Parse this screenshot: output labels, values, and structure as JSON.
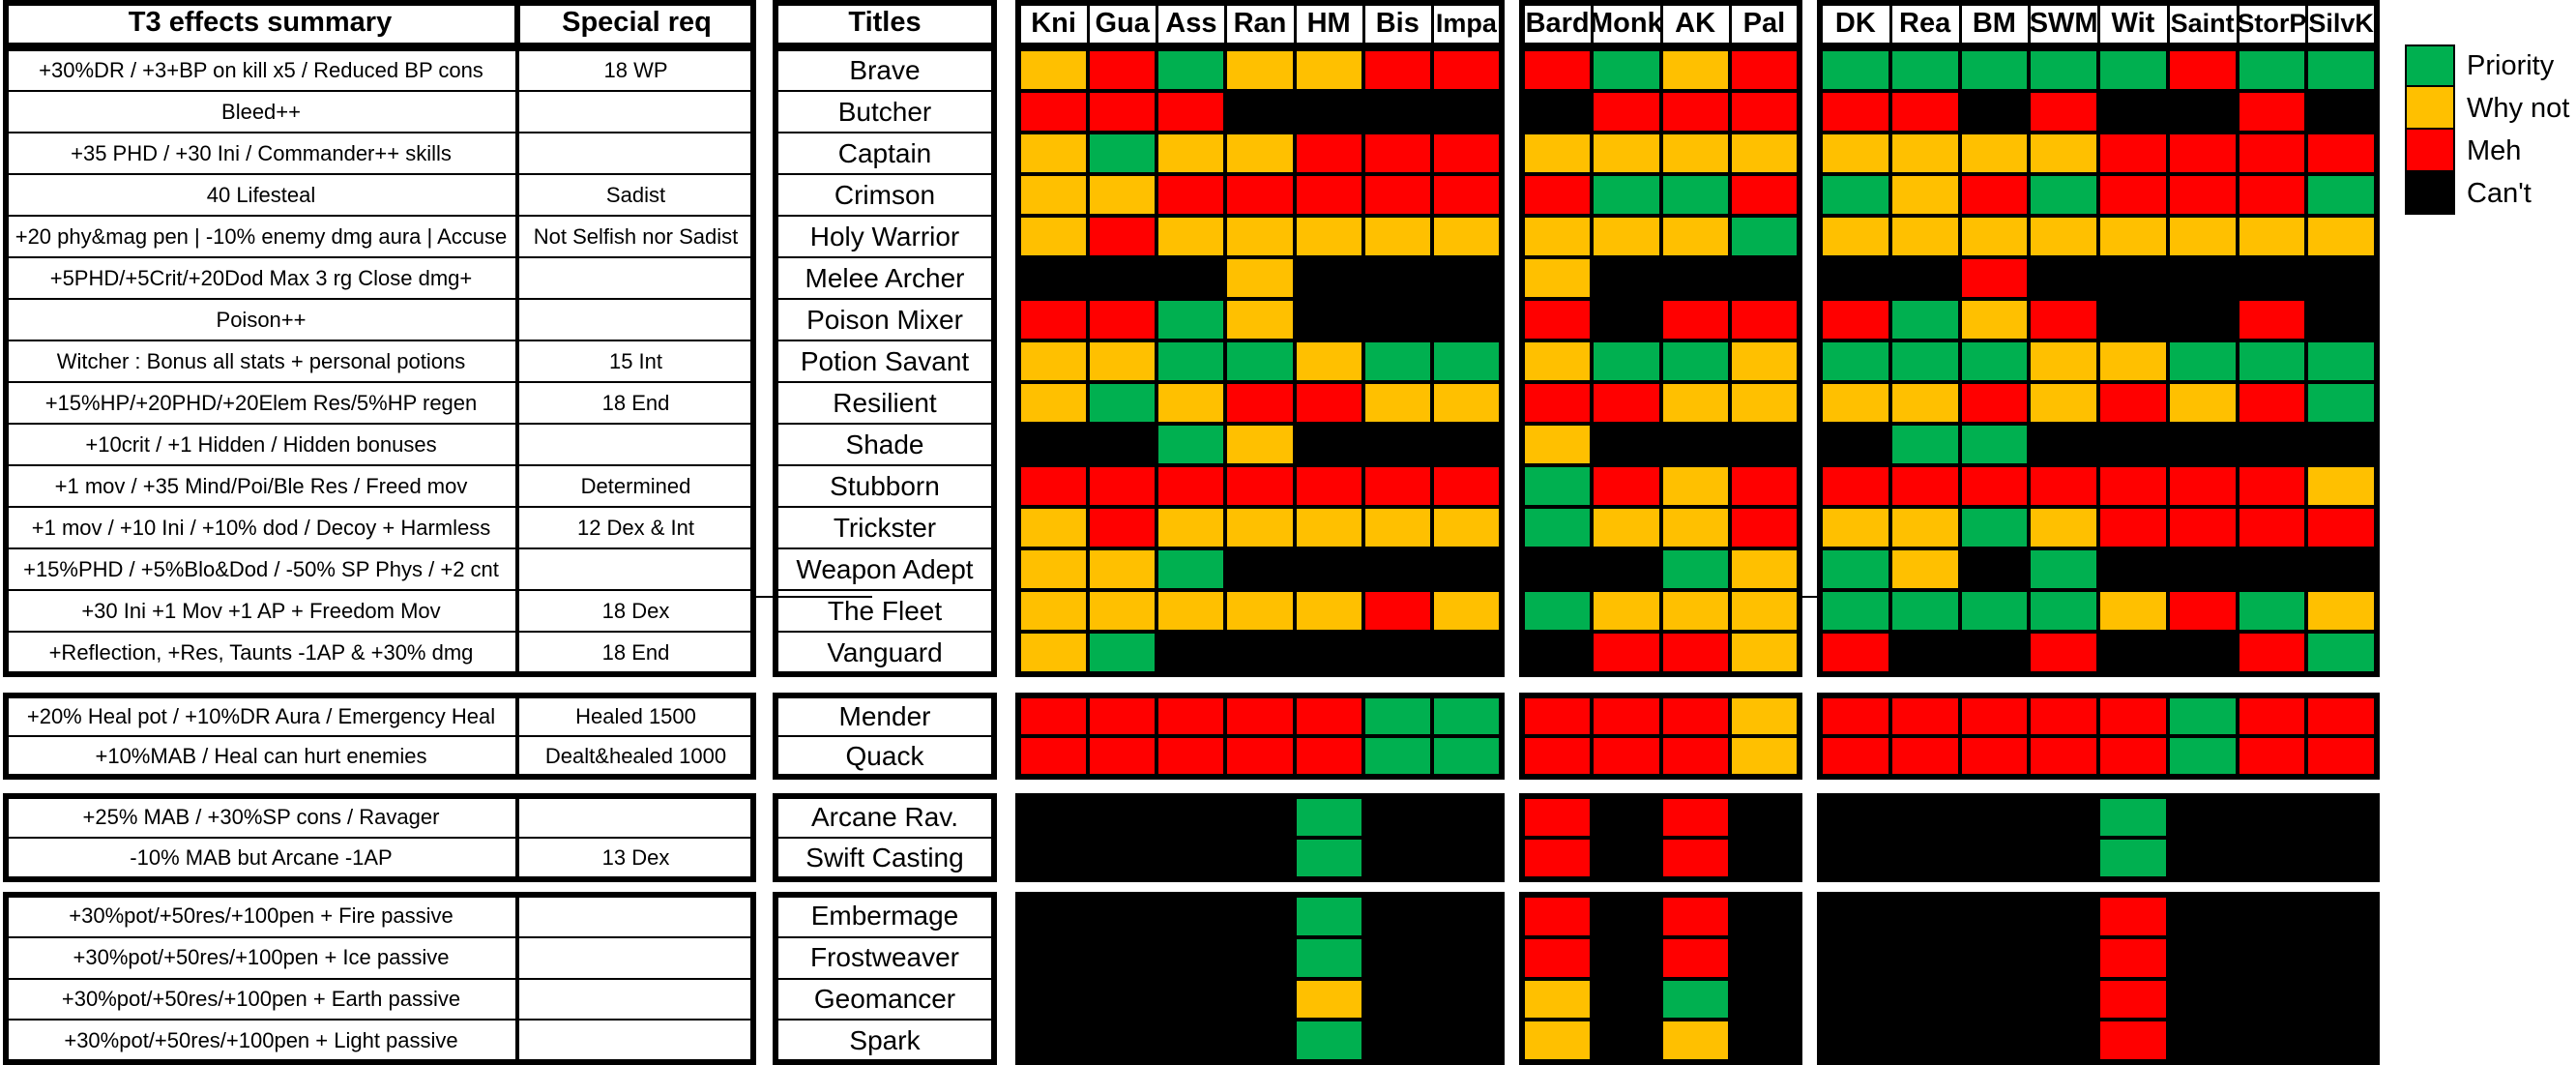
{
  "chart_data": {
    "type": "heatmap",
    "headers": {
      "effects": "T3 effects summary",
      "special": "Special req",
      "titles": "Titles"
    },
    "class_groups": [
      [
        "Kni",
        "Gua",
        "Ass",
        "Ran",
        "HM",
        "Bis",
        "Impa"
      ],
      [
        "Bard",
        "Monk",
        "AK",
        "Pal"
      ],
      [
        "DK",
        "Rea",
        "BM",
        "SWM",
        "Wit",
        "Saint",
        "StorP",
        "SilvK"
      ]
    ],
    "legend": [
      {
        "label": "Priority",
        "code": "P"
      },
      {
        "label": "Why not",
        "code": "W"
      },
      {
        "label": "Meh",
        "code": "M"
      },
      {
        "label": "Can't",
        "code": "X"
      }
    ],
    "colors": {
      "P": "#00b050",
      "W": "#ffc000",
      "M": "#ff0000",
      "X": "#000000"
    },
    "row_groups": [
      {
        "rows": [
          {
            "effect": "+30%DR / +3+BP on kill x5 / Reduced BP cons",
            "req": "18 WP",
            "title": "Brave",
            "values": [
              "WMPWWMM",
              "MPWM",
              "PPPPPMPP"
            ]
          },
          {
            "effect": "Bleed++",
            "req": "",
            "title": "Butcher",
            "values": [
              "MMMXXXX",
              "XMMM",
              "MMXMXXMX"
            ]
          },
          {
            "effect": "+35 PHD / +30 Ini / Commander++ skills",
            "req": "",
            "title": "Captain",
            "values": [
              "WPWWMMM",
              "WWWW",
              "WWWWMMMM"
            ]
          },
          {
            "effect": "40 Lifesteal",
            "req": "Sadist",
            "title": "Crimson",
            "values": [
              "WWMMMMM",
              "MPPM",
              "PWMPMMMP"
            ]
          },
          {
            "effect": "+20 phy&mag pen | -10% enemy dmg aura | Accuse",
            "req": "Not Selfish nor Sadist",
            "title": "Holy Warrior",
            "values": [
              "WMWWWWW",
              "WWWP",
              "WWWWWWWW"
            ]
          },
          {
            "effect": "+5PHD/+5Crit/+20Dod Max 3 rg Close dmg+",
            "req": "",
            "title": "Melee Archer",
            "values": [
              "XXXWXXX",
              "WXXX",
              "XXMXXXXX"
            ]
          },
          {
            "effect": "Poison++",
            "req": "",
            "title": "Poison Mixer",
            "values": [
              "MMPWXXX",
              "MXMM",
              "MPWMXXMX"
            ]
          },
          {
            "effect": "Witcher : Bonus all stats + personal potions",
            "req": "15 Int",
            "title": "Potion Savant",
            "values": [
              "WWPPWPP",
              "WPPW",
              "PPPWWPPP"
            ]
          },
          {
            "effect": "+15%HP/+20PHD/+20Elem Res/5%HP regen",
            "req": "18 End",
            "title": "Resilient",
            "values": [
              "WPWMMWW",
              "MMWW",
              "WWMWMWMP"
            ]
          },
          {
            "effect": "+10crit / +1 Hidden / Hidden bonuses",
            "req": "",
            "title": "Shade",
            "values": [
              "XXPWXXX",
              "WXXX",
              "XPPXXXXX"
            ]
          },
          {
            "effect": "+1 mov / +35 Mind/Poi/Ble Res / Freed mov",
            "req": "Determined",
            "title": "Stubborn",
            "values": [
              "MMMMMMM",
              "PMWM",
              "MMMMMMMW"
            ]
          },
          {
            "effect": "+1 mov / +10 Ini / +10% dod / Decoy + Harmless",
            "req": "12 Dex & Int",
            "title": "Trickster",
            "values": [
              "WMWWWWW",
              "PWWM",
              "WWPWMMMM"
            ]
          },
          {
            "effect": "+15%PHD / +5%Blo&Dod / -50% SP Phys / +2 cnt",
            "req": "",
            "title": "Weapon Adept",
            "values": [
              "WWPXXXX",
              "XXPW",
              "PWXPXXXX"
            ]
          },
          {
            "effect": "+30 Ini +1 Mov +1 AP + Freedom Mov",
            "req": "18 Dex",
            "title": "The Fleet",
            "values": [
              "WWWWWMW",
              "PWWW",
              "PPPPWMPW"
            ]
          },
          {
            "effect": "+Reflection, +Res, Taunts -1AP & +30% dmg",
            "req": "18 End",
            "title": "Vanguard",
            "values": [
              "WPXXXXX",
              "XMMW",
              "MXXMXXMP"
            ]
          }
        ]
      },
      {
        "rows": [
          {
            "effect": "+20% Heal pot / +10%DR Aura / Emergency Heal",
            "req": "Healed 1500",
            "title": "Mender",
            "values": [
              "MMMMMPP",
              "MMMW",
              "MMMMMPMM"
            ]
          },
          {
            "effect": "+10%MAB / Heal can hurt enemies",
            "req": "Dealt&healed 1000",
            "title": "Quack",
            "values": [
              "MMMMMPP",
              "MMMW",
              "MMMMMPMM"
            ]
          }
        ]
      },
      {
        "rows": [
          {
            "effect": "+25% MAB / +30%SP cons / Ravager",
            "req": "",
            "title": "Arcane Rav.",
            "values": [
              "XXXXPXX",
              "MXMX",
              "XXXXPXXX"
            ]
          },
          {
            "effect": "-10% MAB but Arcane -1AP",
            "req": "13 Dex",
            "title": "Swift Casting",
            "values": [
              "XXXXPXX",
              "MXMX",
              "XXXXPXXX"
            ]
          }
        ]
      },
      {
        "rows": [
          {
            "effect": "+30%pot/+50res/+100pen + Fire passive",
            "req": "",
            "title": "Embermage",
            "values": [
              "XXXXPXX",
              "MXMX",
              "XXXXMXXX"
            ]
          },
          {
            "effect": "+30%pot/+50res/+100pen + Ice passive",
            "req": "",
            "title": "Frostweaver",
            "values": [
              "XXXXPXX",
              "MXMX",
              "XXXXMXXX"
            ]
          },
          {
            "effect": "+30%pot/+50res/+100pen + Earth passive",
            "req": "",
            "title": "Geomancer",
            "values": [
              "XXXXWXX",
              "WXPX",
              "XXXXMXXX"
            ]
          },
          {
            "effect": "+30%pot/+50res/+100pen + Light passive",
            "req": "",
            "title": "Spark",
            "values": [
              "XXXXPXX",
              "WXWX",
              "XXXXMXXX"
            ]
          }
        ]
      }
    ]
  }
}
